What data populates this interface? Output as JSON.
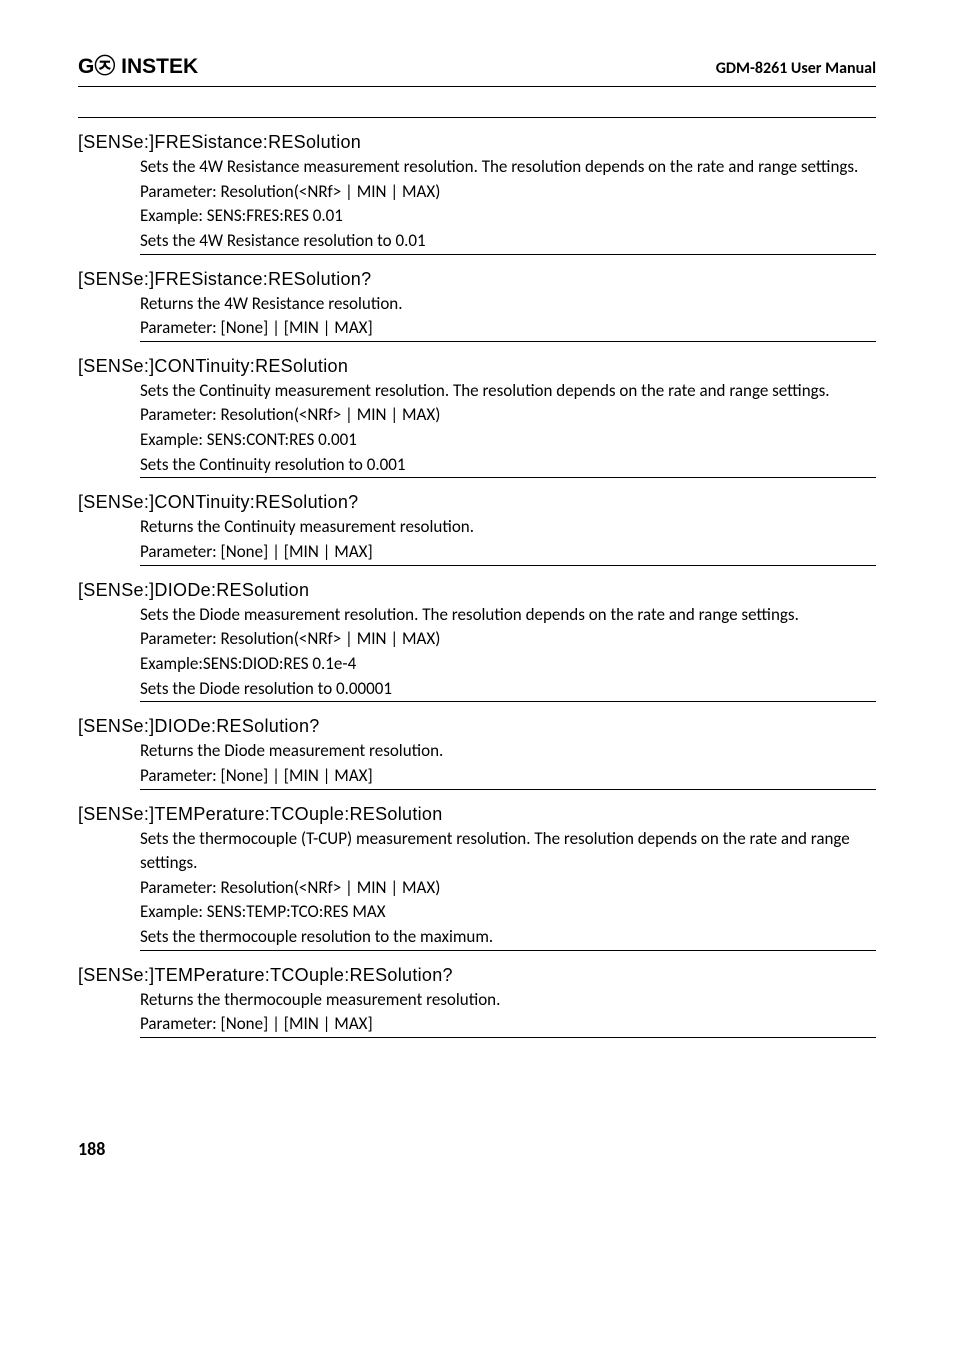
{
  "header": {
    "brand": "G㉨ INSTEK",
    "manual": "GDM-8261 User Manual"
  },
  "commands": [
    {
      "name": "[SENSe:]FRESistance:RESolution",
      "lines": [
        "Sets the 4W Resistance measurement resolution. The resolution depends on the rate and range settings.",
        "Parameter: Resolution(<NRf> | MIN | MAX)",
        "Example: SENS:FRES:RES 0.01",
        "Sets the 4W Resistance resolution to 0.01"
      ]
    },
    {
      "name": "[SENSe:]FRESistance:RESolution?",
      "lines": [
        "Returns the 4W Resistance resolution.",
        "Parameter: [None] | [MIN | MAX]"
      ]
    },
    {
      "name": "[SENSe:]CONTinuity:RESolution",
      "lines": [
        "Sets the Continuity measurement resolution. The resolution depends on the rate and range settings.",
        "Parameter: Resolution(<NRf> | MIN | MAX)",
        "Example: SENS:CONT:RES 0.001",
        "Sets the Continuity resolution to 0.001"
      ]
    },
    {
      "name": "[SENSe:]CONTinuity:RESolution?",
      "lines": [
        "Returns the Continuity measurement resolution.",
        "Parameter: [None] | [MIN | MAX]"
      ]
    },
    {
      "name": "[SENSe:]DIODe:RESolution",
      "lines": [
        "Sets the Diode measurement resolution. The resolution depends on the rate and range settings.",
        "Parameter: Resolution(<NRf> | MIN | MAX)",
        "Example:SENS:DIOD:RES 0.1e-4",
        "Sets the Diode resolution to 0.00001"
      ]
    },
    {
      "name": "[SENSe:]DIODe:RESolution?",
      "lines": [
        "Returns the Diode measurement resolution.",
        "Parameter: [None] | [MIN | MAX]"
      ]
    },
    {
      "name": "[SENSe:]TEMPerature:TCOuple:RESolution",
      "lines": [
        "Sets the thermocouple (T-CUP) measurement resolution. The resolution depends on the rate and range settings.",
        "Parameter: Resolution(<NRf> | MIN | MAX)",
        "Example: SENS:TEMP:TCO:RES MAX",
        "Sets the thermocouple resolution to the maximum."
      ]
    },
    {
      "name": "[SENSe:]TEMPerature:TCOuple:RESolution?",
      "lines": [
        "Returns the thermocouple measurement resolution.",
        "Parameter: [None] | [MIN | MAX]"
      ]
    }
  ],
  "pagenum": "188"
}
